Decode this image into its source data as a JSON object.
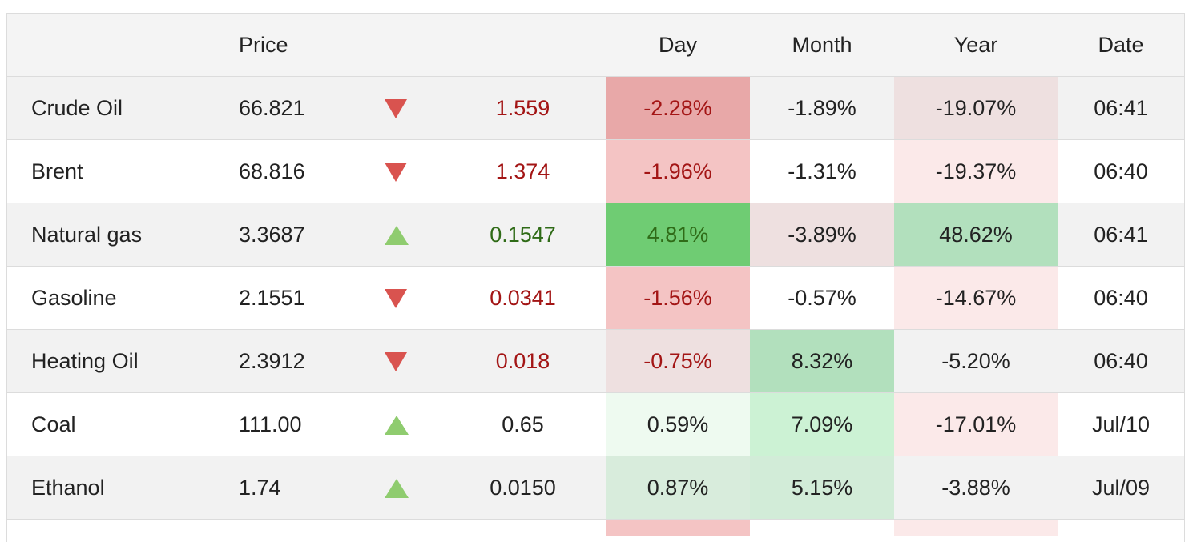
{
  "header": {
    "price": "Price",
    "day": "Day",
    "month": "Month",
    "year": "Year",
    "date": "Date"
  },
  "colors": {
    "neg_text": "#a31515",
    "pos_text": "#2f6b17",
    "arrow_down": "#d9534f",
    "arrow_up": "#8fcc6f"
  },
  "rows": [
    {
      "name": "Crude Oil",
      "price": "66.821",
      "direction": "down",
      "change": "1.559",
      "day": "-2.28%",
      "month": "-1.89%",
      "year": "-19.07%",
      "date": "06:41",
      "day_bg": "#e8a8a8",
      "month_bg": "",
      "year_bg": "#eee0e0"
    },
    {
      "name": "Brent",
      "price": "68.816",
      "direction": "down",
      "change": "1.374",
      "day": "-1.96%",
      "month": "-1.31%",
      "year": "-19.37%",
      "date": "06:40",
      "day_bg": "#f4c4c4",
      "month_bg": "",
      "year_bg": "#fbe9e9"
    },
    {
      "name": "Natural gas",
      "price": "3.3687",
      "direction": "up",
      "change": "0.1547",
      "day": "4.81%",
      "month": "-3.89%",
      "year": "48.62%",
      "date": "06:41",
      "day_bg": "#6fcc73",
      "month_bg": "#eee0e0",
      "year_bg": "#b2e0bd"
    },
    {
      "name": "Gasoline",
      "price": "2.1551",
      "direction": "down",
      "change": "0.0341",
      "day": "-1.56%",
      "month": "-0.57%",
      "year": "-14.67%",
      "date": "06:40",
      "day_bg": "#f4c4c4",
      "month_bg": "",
      "year_bg": "#fbe9e9"
    },
    {
      "name": "Heating Oil",
      "price": "2.3912",
      "direction": "down",
      "change": "0.018",
      "day": "-0.75%",
      "month": "8.32%",
      "year": "-5.20%",
      "date": "06:40",
      "day_bg": "#eee0e0",
      "month_bg": "#b2e0bd",
      "year_bg": ""
    },
    {
      "name": "Coal",
      "price": "111.00",
      "direction": "up",
      "change": "0.65",
      "day": "0.59%",
      "month": "7.09%",
      "year": "-17.01%",
      "date": "Jul/10",
      "day_bg": "#eefaf0",
      "month_bg": "#ccf2d4",
      "year_bg": "#fbe9e9"
    },
    {
      "name": "Ethanol",
      "price": "1.74",
      "direction": "up",
      "change": "0.0150",
      "day": "0.87%",
      "month": "5.15%",
      "year": "-3.88%",
      "date": "Jul/09",
      "day_bg": "#d8ecdc",
      "month_bg": "#d2ecd8",
      "year_bg": ""
    }
  ]
}
